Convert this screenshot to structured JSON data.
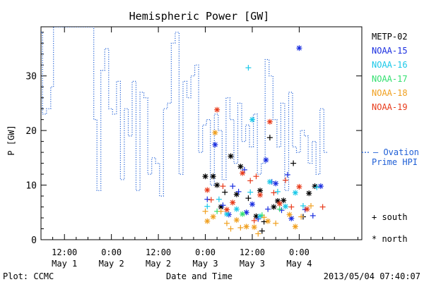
{
  "chart_data": {
    "type": "scatter",
    "title": "Hemispheric Power [GW]",
    "ylabel": "P [GW]",
    "xlabel": "Date and Time",
    "ylim": [
      0,
      39
    ],
    "yticks": [
      0,
      10,
      20,
      30
    ],
    "x_unit": "hours",
    "xlim": [
      0,
      82
    ],
    "xticks": [
      {
        "x": 6,
        "top": "12:00",
        "bottom": "May 1"
      },
      {
        "x": 18,
        "top": "0:00",
        "bottom": "May 2"
      },
      {
        "x": 30,
        "top": "12:00",
        "bottom": "May 2"
      },
      {
        "x": 42,
        "top": "0:00",
        "bottom": "May 3"
      },
      {
        "x": 54,
        "top": "12:00",
        "bottom": "May 3"
      },
      {
        "x": 66,
        "top": "0:00",
        "bottom": "May 4"
      }
    ],
    "footer_left": "Plot: CCMC",
    "footer_right": "2013/05/04 07:40:07",
    "legend_satellites": [
      {
        "name": "METP-02",
        "color": "#000000"
      },
      {
        "name": "NOAA-15",
        "color": "#1a2ee0"
      },
      {
        "name": "NOAA-16",
        "color": "#19c8e8"
      },
      {
        "name": "NOAA-17",
        "color": "#33e070"
      },
      {
        "name": "NOAA-18",
        "color": "#f0a020"
      },
      {
        "name": "NOAA-19",
        "color": "#e83a1a"
      }
    ],
    "ovation_label_1": "— Ovation",
    "ovation_label_2": "Prime HPI",
    "ovation_color": "#1f5fd6",
    "ovation_value": 16,
    "legend_south": "+ south",
    "legend_north": "* north",
    "hpi_steps": [
      [
        0,
        38
      ],
      [
        0.4,
        23
      ],
      [
        1.4,
        24
      ],
      [
        2.5,
        28
      ],
      [
        3.2,
        39
      ],
      [
        13.2,
        39
      ],
      [
        13.5,
        22
      ],
      [
        14.3,
        9
      ],
      [
        15.3,
        31
      ],
      [
        16.3,
        35
      ],
      [
        17.3,
        24
      ],
      [
        18.3,
        23
      ],
      [
        19.3,
        29
      ],
      [
        20.3,
        11
      ],
      [
        21.3,
        24
      ],
      [
        22.3,
        19
      ],
      [
        23.3,
        29
      ],
      [
        24.3,
        9
      ],
      [
        25.3,
        27
      ],
      [
        26.3,
        26
      ],
      [
        27.3,
        12
      ],
      [
        28.3,
        15
      ],
      [
        29.3,
        14
      ],
      [
        30.3,
        8
      ],
      [
        31.3,
        24
      ],
      [
        32.3,
        25
      ],
      [
        33.3,
        36
      ],
      [
        34.3,
        38
      ],
      [
        35.3,
        12
      ],
      [
        36.3,
        29
      ],
      [
        37.3,
        26
      ],
      [
        38.3,
        30
      ],
      [
        39.3,
        32
      ],
      [
        40.3,
        16
      ],
      [
        41.3,
        21
      ],
      [
        42.3,
        22
      ],
      [
        43.3,
        10
      ],
      [
        44.3,
        23
      ],
      [
        45.3,
        20
      ],
      [
        46.3,
        11
      ],
      [
        47.3,
        26
      ],
      [
        48.3,
        22
      ],
      [
        49.3,
        14
      ],
      [
        50.3,
        25
      ],
      [
        51.3,
        18
      ],
      [
        52.3,
        21
      ],
      [
        53.3,
        17
      ],
      [
        54.3,
        23
      ],
      [
        55.3,
        12
      ],
      [
        56.3,
        14
      ],
      [
        57.3,
        33
      ],
      [
        58.3,
        30
      ],
      [
        59.3,
        22
      ],
      [
        60.3,
        17
      ],
      [
        61.3,
        25
      ],
      [
        62.3,
        9
      ],
      [
        63.3,
        27
      ],
      [
        64.3,
        17
      ],
      [
        65.3,
        16
      ],
      [
        66.3,
        20
      ],
      [
        67.3,
        19
      ],
      [
        68.3,
        14
      ],
      [
        69.3,
        18
      ],
      [
        70.3,
        12
      ],
      [
        71.3,
        24
      ],
      [
        72.3,
        16
      ]
    ],
    "points": [
      {
        "x": 42.0,
        "y": 11.6,
        "m": "*",
        "sat": "METP-02"
      },
      {
        "x": 44.0,
        "y": 11.6,
        "m": "*",
        "sat": "METP-02"
      },
      {
        "x": 45.0,
        "y": 10.0,
        "m": "*",
        "sat": "METP-02"
      },
      {
        "x": 47.0,
        "y": 8.7,
        "m": "+",
        "sat": "METP-02"
      },
      {
        "x": 48.5,
        "y": 15.3,
        "m": "*",
        "sat": "METP-02"
      },
      {
        "x": 51.0,
        "y": 13.4,
        "m": "*",
        "sat": "METP-02"
      },
      {
        "x": 53.0,
        "y": 7.6,
        "m": "+",
        "sat": "METP-02"
      },
      {
        "x": 56.0,
        "y": 9.0,
        "m": "*",
        "sat": "METP-02"
      },
      {
        "x": 57.0,
        "y": 3.3,
        "m": "+",
        "sat": "METP-02"
      },
      {
        "x": 58.5,
        "y": 18.7,
        "m": "+",
        "sat": "METP-02"
      },
      {
        "x": 60.5,
        "y": 7.1,
        "m": "*",
        "sat": "METP-02"
      },
      {
        "x": 62.0,
        "y": 7.2,
        "m": "*",
        "sat": "METP-02"
      },
      {
        "x": 64.5,
        "y": 14.0,
        "m": "+",
        "sat": "METP-02"
      },
      {
        "x": 67.0,
        "y": 4.2,
        "m": "+",
        "sat": "METP-02"
      },
      {
        "x": 68.5,
        "y": 8.5,
        "m": "*",
        "sat": "METP-02"
      },
      {
        "x": 70.0,
        "y": 9.8,
        "m": "*",
        "sat": "METP-02"
      },
      {
        "x": 46.0,
        "y": 6.0,
        "m": "*",
        "sat": "METP-02"
      },
      {
        "x": 50.0,
        "y": 8.3,
        "m": "*",
        "sat": "METP-02"
      },
      {
        "x": 55.0,
        "y": 4.3,
        "m": "*",
        "sat": "METP-02"
      },
      {
        "x": 59.5,
        "y": 6.0,
        "m": "*",
        "sat": "METP-02"
      },
      {
        "x": 56.5,
        "y": 1.6,
        "m": "+",
        "sat": "METP-02"
      },
      {
        "x": 44.5,
        "y": 17.4,
        "m": "*",
        "sat": "NOAA-15"
      },
      {
        "x": 42.5,
        "y": 7.4,
        "m": "+",
        "sat": "NOAA-15"
      },
      {
        "x": 46.5,
        "y": 6.3,
        "m": "+",
        "sat": "NOAA-15"
      },
      {
        "x": 49.0,
        "y": 9.8,
        "m": "+",
        "sat": "NOAA-15"
      },
      {
        "x": 52.0,
        "y": 12.8,
        "m": "+",
        "sat": "NOAA-15"
      },
      {
        "x": 54.0,
        "y": 6.5,
        "m": "*",
        "sat": "NOAA-15"
      },
      {
        "x": 55.5,
        "y": 3.8,
        "m": "+",
        "sat": "NOAA-15"
      },
      {
        "x": 57.5,
        "y": 14.6,
        "m": "*",
        "sat": "NOAA-15"
      },
      {
        "x": 59.0,
        "y": 10.6,
        "m": "+",
        "sat": "NOAA-15"
      },
      {
        "x": 60.0,
        "y": 10.3,
        "m": "*",
        "sat": "NOAA-15"
      },
      {
        "x": 61.5,
        "y": 5.4,
        "m": "+",
        "sat": "NOAA-15"
      },
      {
        "x": 63.0,
        "y": 11.9,
        "m": "+",
        "sat": "NOAA-15"
      },
      {
        "x": 64.0,
        "y": 3.9,
        "m": "*",
        "sat": "NOAA-15"
      },
      {
        "x": 66.0,
        "y": 35.1,
        "m": "*",
        "sat": "NOAA-15"
      },
      {
        "x": 69.5,
        "y": 4.4,
        "m": "+",
        "sat": "NOAA-15"
      },
      {
        "x": 71.5,
        "y": 9.8,
        "m": "*",
        "sat": "NOAA-15"
      },
      {
        "x": 48.0,
        "y": 4.6,
        "m": "*",
        "sat": "NOAA-15"
      },
      {
        "x": 52.5,
        "y": 5.0,
        "m": "*",
        "sat": "NOAA-15"
      },
      {
        "x": 58.0,
        "y": 5.6,
        "m": "+",
        "sat": "NOAA-15"
      },
      {
        "x": 50.5,
        "y": 8.8,
        "m": "+",
        "sat": "NOAA-15"
      },
      {
        "x": 67.5,
        "y": 5.5,
        "m": "+",
        "sat": "NOAA-15"
      },
      {
        "x": 53.0,
        "y": 31.5,
        "m": "+",
        "sat": "NOAA-16"
      },
      {
        "x": 54.0,
        "y": 22.0,
        "m": "*",
        "sat": "NOAA-16"
      },
      {
        "x": 42.5,
        "y": 6.1,
        "m": "+",
        "sat": "NOAA-16"
      },
      {
        "x": 45.5,
        "y": 7.4,
        "m": "+",
        "sat": "NOAA-16"
      },
      {
        "x": 47.5,
        "y": 4.7,
        "m": "*",
        "sat": "NOAA-16"
      },
      {
        "x": 50.0,
        "y": 5.6,
        "m": "*",
        "sat": "NOAA-16"
      },
      {
        "x": 53.5,
        "y": 8.7,
        "m": "+",
        "sat": "NOAA-16"
      },
      {
        "x": 56.0,
        "y": 4.3,
        "m": "*",
        "sat": "NOAA-16"
      },
      {
        "x": 58.5,
        "y": 10.6,
        "m": "*",
        "sat": "NOAA-16"
      },
      {
        "x": 60.5,
        "y": 8.8,
        "m": "+",
        "sat": "NOAA-16"
      },
      {
        "x": 62.5,
        "y": 6.1,
        "m": "*",
        "sat": "NOAA-16"
      },
      {
        "x": 65.0,
        "y": 8.6,
        "m": "*",
        "sat": "NOAA-16"
      },
      {
        "x": 67.0,
        "y": 6.2,
        "m": "+",
        "sat": "NOAA-16"
      },
      {
        "x": 70.5,
        "y": 9.6,
        "m": "+",
        "sat": "NOAA-16"
      },
      {
        "x": 45.0,
        "y": 5.2,
        "m": "+",
        "sat": "NOAA-17"
      },
      {
        "x": 51.5,
        "y": 4.7,
        "m": "*",
        "sat": "NOAA-17"
      },
      {
        "x": 56.5,
        "y": 4.5,
        "m": "+",
        "sat": "NOAA-17"
      },
      {
        "x": 61.0,
        "y": 5.6,
        "m": "+",
        "sat": "NOAA-17"
      },
      {
        "x": 44.5,
        "y": 19.6,
        "m": "*",
        "sat": "NOAA-18"
      },
      {
        "x": 42.0,
        "y": 5.2,
        "m": "+",
        "sat": "NOAA-18"
      },
      {
        "x": 42.5,
        "y": 3.4,
        "m": "*",
        "sat": "NOAA-18"
      },
      {
        "x": 44.0,
        "y": 4.2,
        "m": "*",
        "sat": "NOAA-18"
      },
      {
        "x": 46.0,
        "y": 5.2,
        "m": "+",
        "sat": "NOAA-18"
      },
      {
        "x": 47.5,
        "y": 3.0,
        "m": "+",
        "sat": "NOAA-18"
      },
      {
        "x": 48.5,
        "y": 2.0,
        "m": "+",
        "sat": "NOAA-18"
      },
      {
        "x": 50.0,
        "y": 3.6,
        "m": "*",
        "sat": "NOAA-18"
      },
      {
        "x": 51.0,
        "y": 2.2,
        "m": "+",
        "sat": "NOAA-18"
      },
      {
        "x": 52.5,
        "y": 2.4,
        "m": "*",
        "sat": "NOAA-18"
      },
      {
        "x": 54.5,
        "y": 2.3,
        "m": "*",
        "sat": "NOAA-18"
      },
      {
        "x": 55.5,
        "y": 1.1,
        "m": "+",
        "sat": "NOAA-18"
      },
      {
        "x": 57.0,
        "y": 4.1,
        "m": "+",
        "sat": "NOAA-18"
      },
      {
        "x": 58.0,
        "y": 3.4,
        "m": "*",
        "sat": "NOAA-18"
      },
      {
        "x": 63.5,
        "y": 4.6,
        "m": "*",
        "sat": "NOAA-18"
      },
      {
        "x": 65.0,
        "y": 2.4,
        "m": "*",
        "sat": "NOAA-18"
      },
      {
        "x": 66.5,
        "y": 4.2,
        "m": "+",
        "sat": "NOAA-18"
      },
      {
        "x": 69.0,
        "y": 6.2,
        "m": "+",
        "sat": "NOAA-18"
      },
      {
        "x": 60.0,
        "y": 3.0,
        "m": "+",
        "sat": "NOAA-18"
      },
      {
        "x": 45.0,
        "y": 23.8,
        "m": "*",
        "sat": "NOAA-19"
      },
      {
        "x": 42.5,
        "y": 9.1,
        "m": "*",
        "sat": "NOAA-19"
      },
      {
        "x": 43.5,
        "y": 7.3,
        "m": "+",
        "sat": "NOAA-19"
      },
      {
        "x": 46.5,
        "y": 9.8,
        "m": "+",
        "sat": "NOAA-19"
      },
      {
        "x": 47.5,
        "y": 5.5,
        "m": "*",
        "sat": "NOAA-19"
      },
      {
        "x": 49.0,
        "y": 6.8,
        "m": "*",
        "sat": "NOAA-19"
      },
      {
        "x": 51.5,
        "y": 12.2,
        "m": "*",
        "sat": "NOAA-19"
      },
      {
        "x": 53.5,
        "y": 10.8,
        "m": "+",
        "sat": "NOAA-19"
      },
      {
        "x": 55.0,
        "y": 11.6,
        "m": "+",
        "sat": "NOAA-19"
      },
      {
        "x": 56.0,
        "y": 8.2,
        "m": "*",
        "sat": "NOAA-19"
      },
      {
        "x": 58.5,
        "y": 21.6,
        "m": "*",
        "sat": "NOAA-19"
      },
      {
        "x": 59.5,
        "y": 8.6,
        "m": "+",
        "sat": "NOAA-19"
      },
      {
        "x": 61.0,
        "y": 6.6,
        "m": "*",
        "sat": "NOAA-19"
      },
      {
        "x": 62.5,
        "y": 10.9,
        "m": "+",
        "sat": "NOAA-19"
      },
      {
        "x": 64.0,
        "y": 6.0,
        "m": "+",
        "sat": "NOAA-19"
      },
      {
        "x": 66.0,
        "y": 9.7,
        "m": "*",
        "sat": "NOAA-19"
      },
      {
        "x": 68.0,
        "y": 5.6,
        "m": "*",
        "sat": "NOAA-19"
      },
      {
        "x": 72.0,
        "y": 6.0,
        "m": "+",
        "sat": "NOAA-19"
      },
      {
        "x": 54.5,
        "y": 3.5,
        "m": "+",
        "sat": "NOAA-19"
      }
    ]
  }
}
